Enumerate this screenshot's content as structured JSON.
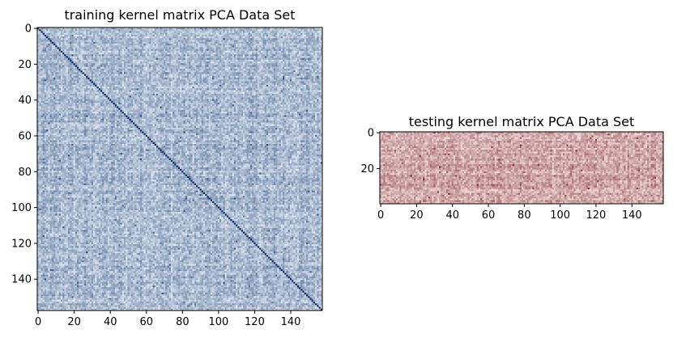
{
  "chart_data": [
    {
      "type": "heatmap",
      "id": "training",
      "title": "training kernel matrix PCA Data Set",
      "colormap": "Blues",
      "color_low": "#f7fbff",
      "color_high": "#08306b",
      "rows": 158,
      "cols": 158,
      "diagonal_max": true,
      "xlim": [
        0,
        158
      ],
      "ylim": [
        0,
        158
      ],
      "xticks": [
        0,
        20,
        40,
        60,
        80,
        100,
        120,
        140
      ],
      "yticks": [
        0,
        20,
        40,
        60,
        80,
        100,
        120,
        140
      ],
      "xlabel": "",
      "ylabel": ""
    },
    {
      "type": "heatmap",
      "id": "testing",
      "title": "testing kernel matrix PCA Data Set",
      "colormap": "Reds",
      "color_low": "#fff5f0",
      "color_high": "#67000d",
      "rows": 40,
      "cols": 158,
      "diagonal_max": false,
      "xlim": [
        0,
        158
      ],
      "ylim": [
        0,
        40
      ],
      "xticks": [
        0,
        20,
        40,
        60,
        80,
        100,
        120,
        140
      ],
      "yticks": [
        0,
        20
      ],
      "xlabel": "",
      "ylabel": ""
    }
  ]
}
